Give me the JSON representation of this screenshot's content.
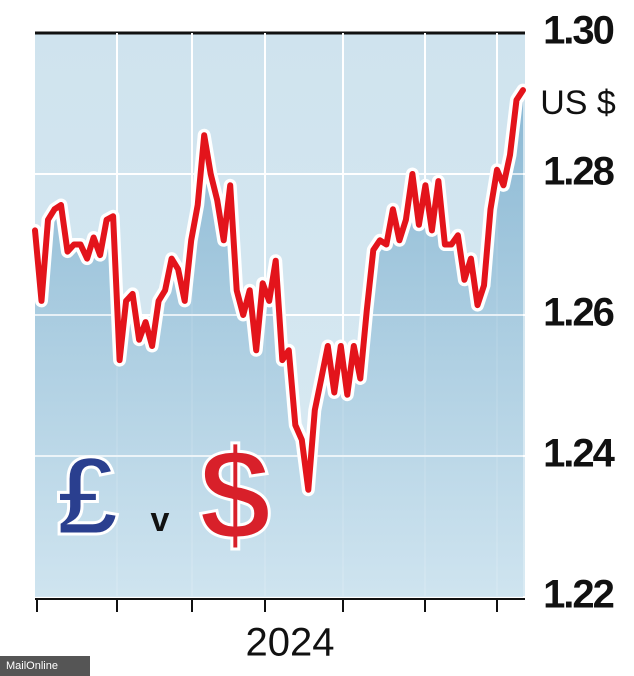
{
  "chart_data": {
    "type": "line",
    "unit_label": "US $",
    "x_label": "2024",
    "source": "MailOnline",
    "badge": [
      "£",
      "v",
      "$"
    ],
    "series": [
      {
        "color": "#e3141b",
        "values": [
          1.272,
          1.262,
          1.2735,
          1.275,
          1.2756,
          1.269,
          1.27,
          1.27,
          1.268,
          1.271,
          1.2685,
          1.2735,
          1.274,
          1.2536,
          1.262,
          1.263,
          1.2565,
          1.259,
          1.2556,
          1.262,
          1.2635,
          1.268,
          1.2665,
          1.262,
          1.2706,
          1.2756,
          1.2855,
          1.28,
          1.2763,
          1.2706,
          1.2784,
          1.2635,
          1.26,
          1.2635,
          1.255,
          1.2645,
          1.262,
          1.2677,
          1.2536,
          1.255,
          1.2444,
          1.2423,
          1.2352,
          1.2465,
          1.251,
          1.2556,
          1.249,
          1.2556,
          1.2487,
          1.2556,
          1.251,
          1.2607,
          1.2692,
          1.2706,
          1.27,
          1.275,
          1.2706,
          1.2735,
          1.28,
          1.2728,
          1.2784,
          1.272,
          1.279,
          1.27,
          1.27,
          1.2713,
          1.265,
          1.268,
          1.2614,
          1.2642,
          1.275,
          1.2806,
          1.2784,
          1.2827,
          1.2905,
          1.2919
        ]
      }
    ],
    "ylim": [
      1.22,
      1.3
    ],
    "yticks": [
      {
        "value": 1.3,
        "label": "1.30"
      },
      1.28,
      1.26,
      1.24,
      1.22
    ],
    "grid": true
  }
}
